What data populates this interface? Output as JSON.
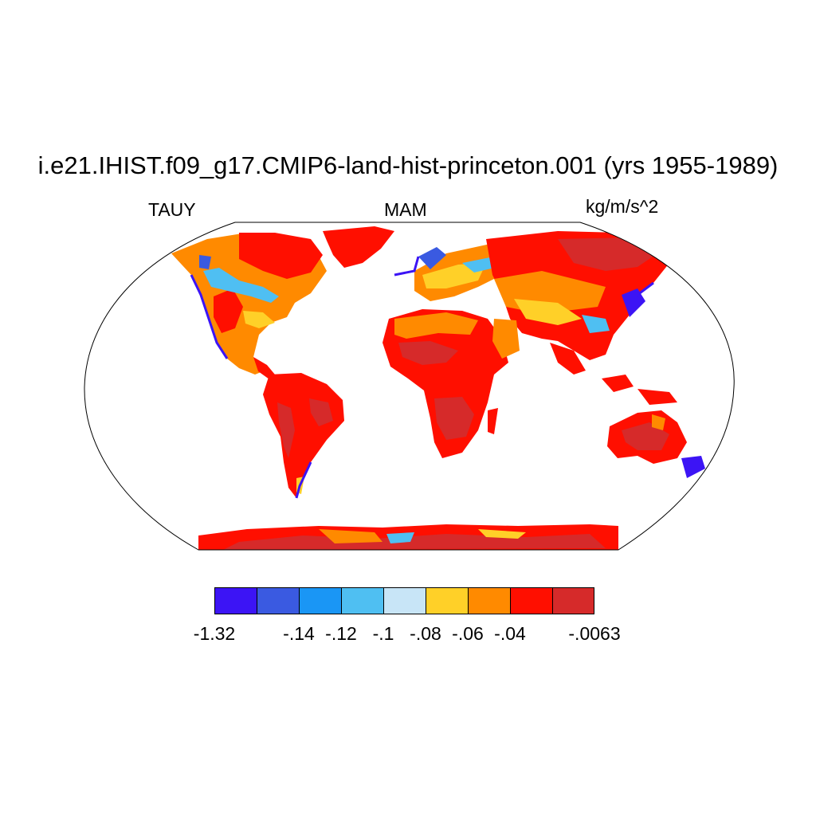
{
  "title": "i.e21.IHIST.f09_g17.CMIP6-land-hist-princeton.001 (yrs 1955-1989)",
  "variable": "TAUY",
  "season": "MAM",
  "units": "kg/m/s^2",
  "projection": "Robinson",
  "colorbar": {
    "colors": [
      "#3c14f5",
      "#3a5ae1",
      "#1a96f5",
      "#4fbff2",
      "#c8e5f7",
      "#ffd028",
      "#ff8a00",
      "#ff0f00",
      "#d62a2a"
    ],
    "labels": [
      "-1.32",
      "-.14",
      "-.12",
      "-.1",
      "-.08",
      "-.06",
      "-.04",
      "-.0063"
    ]
  },
  "ocean_color": "#ffffff"
}
